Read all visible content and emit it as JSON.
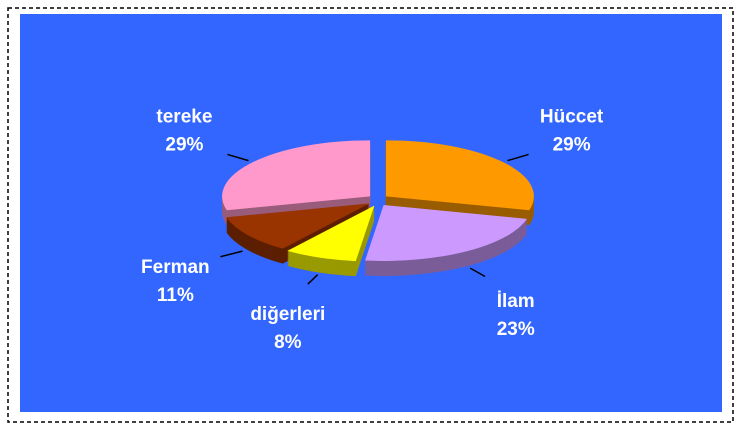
{
  "chart_data": {
    "type": "pie3d",
    "categories": [
      "Hüccet",
      "İlam",
      "diğerleri",
      "Ferman",
      "tereke"
    ],
    "values": [
      29,
      23,
      8,
      11,
      29
    ],
    "value_labels": [
      "29%",
      "23%",
      "8%",
      "11%",
      "29%"
    ],
    "colors": [
      "#ff9900",
      "#cc99ff",
      "#ffff00",
      "#993300",
      "#ff99cc"
    ],
    "background": "#3366ff"
  }
}
